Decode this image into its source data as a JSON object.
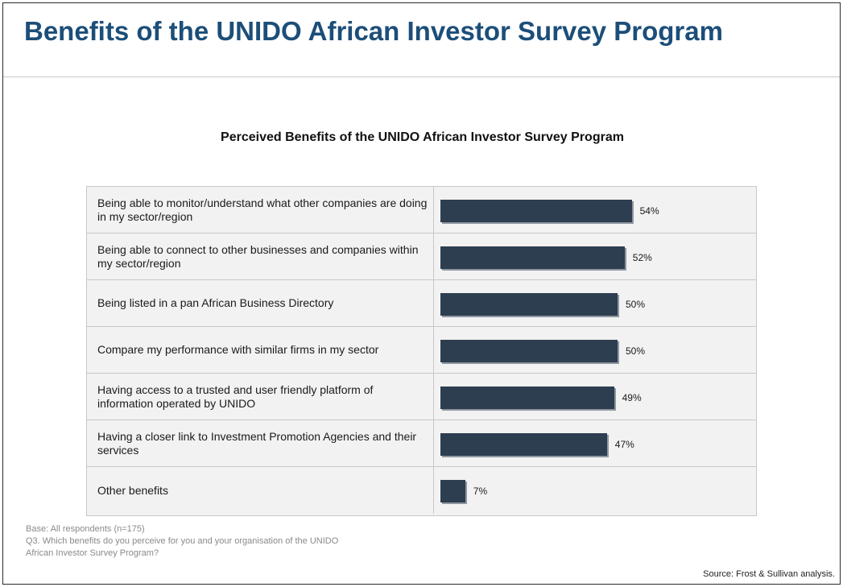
{
  "slide": {
    "title": "Benefits of the UNIDO African Investor Survey Program"
  },
  "chart_data": {
    "type": "bar",
    "orientation": "horizontal",
    "title": "Perceived Benefits of the UNIDO African Investor Survey Program",
    "categories": [
      "Being able to monitor/understand what other companies are doing in my sector/region",
      "Being able to connect to other businesses and companies within my sector/region",
      "Being listed in a pan African Business Directory",
      "Compare my performance with similar firms in my sector",
      "Having access to a trusted and user friendly platform of information operated by UNIDO",
      "Having a closer link to Investment Promotion Agencies and their services",
      "Other benefits"
    ],
    "values": [
      54,
      52,
      50,
      50,
      49,
      47,
      7
    ],
    "value_labels": [
      "54%",
      "52%",
      "50%",
      "50%",
      "49%",
      "47%",
      "7%"
    ],
    "unit": "%",
    "xlim": [
      0,
      100
    ],
    "grid": false,
    "bar_color": "#2d3e50"
  },
  "footnotes": {
    "base": "Base: All respondents (n=175)",
    "question_line1": "Q3. Which benefits do you perceive for you and your organisation of the UNIDO",
    "question_line2": "African Investor Survey Program?"
  },
  "source": "Source: Frost & Sullivan analysis."
}
